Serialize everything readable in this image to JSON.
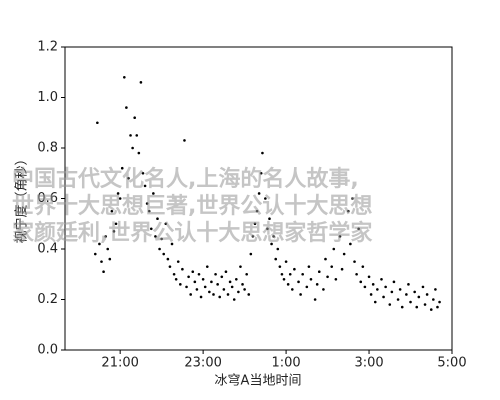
{
  "chart_data": {
    "type": "scatter",
    "xlabel": "冰穹A当地时间",
    "ylabel": "视宁度（角秒）",
    "color": "#000000",
    "xlim": [
      19.67,
      29
    ],
    "xticks": [
      {
        "value": 21,
        "label": "21:00"
      },
      {
        "value": 23,
        "label": "23:00"
      },
      {
        "value": 25,
        "label": "1:00"
      },
      {
        "value": 27,
        "label": "3:00"
      },
      {
        "value": 29,
        "label": "5:00"
      }
    ],
    "ylim": [
      0,
      1.2
    ],
    "yticks": [
      {
        "value": 0,
        "label": "0.0"
      },
      {
        "value": 0.2,
        "label": "0.2"
      },
      {
        "value": 0.4,
        "label": "0.4"
      },
      {
        "value": 0.6,
        "label": "0.6"
      },
      {
        "value": 0.8,
        "label": "0.8"
      },
      {
        "value": 1,
        "label": "1.0"
      },
      {
        "value": 1.2,
        "label": "1.2"
      }
    ],
    "x": [
      20.4,
      20.45,
      20.5,
      20.55,
      20.6,
      20.65,
      20.7,
      20.75,
      20.8,
      20.85,
      20.9,
      20.95,
      21.0,
      21.05,
      21.1,
      21.15,
      21.2,
      21.25,
      21.3,
      21.35,
      21.4,
      21.45,
      21.5,
      21.55,
      21.6,
      21.65,
      21.7,
      21.75,
      21.8,
      21.85,
      21.9,
      21.95,
      22.0,
      22.05,
      22.1,
      22.15,
      22.2,
      22.25,
      22.3,
      22.35,
      22.4,
      22.45,
      22.5,
      22.55,
      22.6,
      22.65,
      22.7,
      22.75,
      22.8,
      22.85,
      22.9,
      22.95,
      23.0,
      23.05,
      23.1,
      23.15,
      23.2,
      23.25,
      23.3,
      23.35,
      23.4,
      23.45,
      23.5,
      23.55,
      23.6,
      23.65,
      23.7,
      23.75,
      23.8,
      23.85,
      23.9,
      23.95,
      24.0,
      24.05,
      24.1,
      24.15,
      24.2,
      24.25,
      24.3,
      24.35,
      24.4,
      24.43,
      24.5,
      24.55,
      24.6,
      24.65,
      24.7,
      24.75,
      24.8,
      24.85,
      24.9,
      24.95,
      25.0,
      25.05,
      25.1,
      25.15,
      25.2,
      25.3,
      25.35,
      25.4,
      25.5,
      25.55,
      25.6,
      25.7,
      25.75,
      25.8,
      25.9,
      25.95,
      26.0,
      26.1,
      26.15,
      26.2,
      26.3,
      26.35,
      26.4,
      26.5,
      26.55,
      26.6,
      26.65,
      26.7,
      26.75,
      26.8,
      26.85,
      26.9,
      27.0,
      27.05,
      27.1,
      27.15,
      27.2,
      27.3,
      27.35,
      27.4,
      27.5,
      27.55,
      27.6,
      27.7,
      27.75,
      27.8,
      27.9,
      27.95,
      28.0,
      28.1,
      28.15,
      28.2,
      28.3,
      28.35,
      28.4,
      28.5,
      28.55,
      28.6,
      28.65,
      28.7
    ],
    "values": [
      0.38,
      0.9,
      0.42,
      0.35,
      0.31,
      0.45,
      0.4,
      0.36,
      0.55,
      0.47,
      0.5,
      0.62,
      0.6,
      0.72,
      1.08,
      0.96,
      0.68,
      0.85,
      0.8,
      0.92,
      0.85,
      0.78,
      1.06,
      0.7,
      0.65,
      0.58,
      0.55,
      0.48,
      0.62,
      0.45,
      0.52,
      0.4,
      0.44,
      0.38,
      0.5,
      0.36,
      0.33,
      0.42,
      0.3,
      0.28,
      0.35,
      0.26,
      0.32,
      0.83,
      0.25,
      0.29,
      0.22,
      0.31,
      0.27,
      0.24,
      0.3,
      0.21,
      0.28,
      0.25,
      0.33,
      0.23,
      0.27,
      0.22,
      0.3,
      0.26,
      0.21,
      0.29,
      0.24,
      0.31,
      0.22,
      0.27,
      0.25,
      0.2,
      0.28,
      0.23,
      0.33,
      0.26,
      0.24,
      0.3,
      0.22,
      0.38,
      0.45,
      0.5,
      0.55,
      0.62,
      0.7,
      0.78,
      0.6,
      0.48,
      0.52,
      0.42,
      0.45,
      0.36,
      0.4,
      0.33,
      0.3,
      0.28,
      0.35,
      0.26,
      0.3,
      0.24,
      0.32,
      0.27,
      0.22,
      0.3,
      0.25,
      0.33,
      0.28,
      0.2,
      0.26,
      0.31,
      0.24,
      0.36,
      0.29,
      0.33,
      0.4,
      0.28,
      0.45,
      0.32,
      0.38,
      0.55,
      0.42,
      0.6,
      0.35,
      0.3,
      0.48,
      0.27,
      0.33,
      0.25,
      0.29,
      0.22,
      0.26,
      0.19,
      0.24,
      0.28,
      0.21,
      0.25,
      0.18,
      0.23,
      0.27,
      0.2,
      0.24,
      0.17,
      0.22,
      0.26,
      0.19,
      0.23,
      0.17,
      0.21,
      0.25,
      0.18,
      0.22,
      0.16,
      0.2,
      0.24,
      0.17,
      0.19
    ],
    "watermark": [
      "中国古代文化名人,上海的名人故事,",
      "世界十大思想巨著,世界公认十大思想",
      "家颜廷利,世界公认十大思想家哲学家"
    ]
  }
}
